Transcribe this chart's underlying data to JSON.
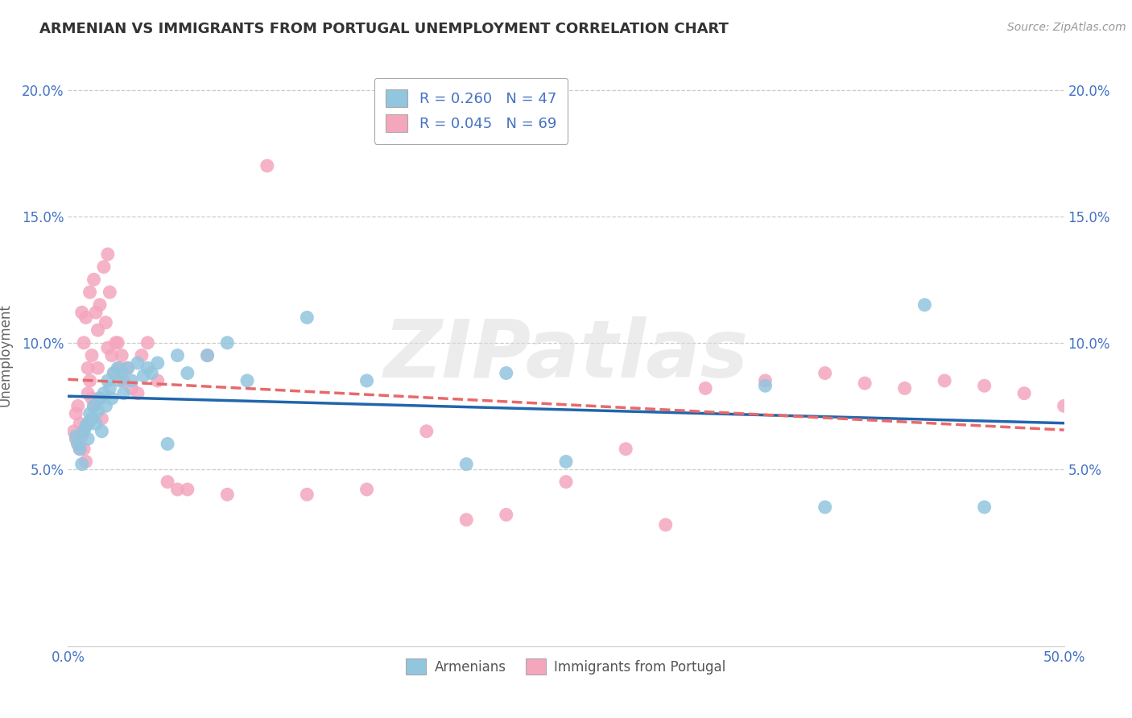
{
  "title": "ARMENIAN VS IMMIGRANTS FROM PORTUGAL UNEMPLOYMENT CORRELATION CHART",
  "source": "Source: ZipAtlas.com",
  "ylabel": "Unemployment",
  "xlim": [
    0.0,
    0.5
  ],
  "ylim": [
    -0.02,
    0.21
  ],
  "xticks": [
    0.0,
    0.1,
    0.2,
    0.3,
    0.4,
    0.5
  ],
  "xtick_labels_show": [
    "0.0%",
    "",
    "",
    "",
    "",
    "50.0%"
  ],
  "yticks": [
    0.05,
    0.1,
    0.15,
    0.2
  ],
  "ytick_labels": [
    "5.0%",
    "10.0%",
    "15.0%",
    "20.0%"
  ],
  "blue_color": "#92c5de",
  "pink_color": "#f4a6bd",
  "blue_line_color": "#2166ac",
  "pink_line_color": "#e8696b",
  "legend_line1": "R = 0.260   N = 47",
  "legend_line2": "R = 0.045   N = 69",
  "label1": "Armenians",
  "label2": "Immigrants from Portugal",
  "watermark": "ZIPatlas",
  "blue_scatter_x": [
    0.004,
    0.005,
    0.006,
    0.007,
    0.008,
    0.009,
    0.01,
    0.01,
    0.011,
    0.012,
    0.013,
    0.014,
    0.015,
    0.016,
    0.017,
    0.018,
    0.019,
    0.02,
    0.021,
    0.022,
    0.023,
    0.025,
    0.026,
    0.027,
    0.028,
    0.03,
    0.032,
    0.035,
    0.038,
    0.04,
    0.042,
    0.045,
    0.05,
    0.055,
    0.06,
    0.07,
    0.08,
    0.09,
    0.12,
    0.15,
    0.2,
    0.22,
    0.25,
    0.35,
    0.38,
    0.43,
    0.46
  ],
  "blue_scatter_y": [
    0.063,
    0.06,
    0.058,
    0.052,
    0.065,
    0.067,
    0.068,
    0.062,
    0.072,
    0.07,
    0.075,
    0.068,
    0.073,
    0.078,
    0.065,
    0.08,
    0.075,
    0.085,
    0.082,
    0.078,
    0.088,
    0.09,
    0.085,
    0.088,
    0.08,
    0.09,
    0.085,
    0.092,
    0.087,
    0.09,
    0.088,
    0.092,
    0.06,
    0.095,
    0.088,
    0.095,
    0.1,
    0.085,
    0.11,
    0.085,
    0.052,
    0.088,
    0.053,
    0.083,
    0.035,
    0.115,
    0.035
  ],
  "pink_scatter_x": [
    0.003,
    0.004,
    0.004,
    0.005,
    0.005,
    0.006,
    0.006,
    0.007,
    0.007,
    0.008,
    0.008,
    0.009,
    0.009,
    0.01,
    0.01,
    0.01,
    0.011,
    0.011,
    0.012,
    0.012,
    0.013,
    0.013,
    0.014,
    0.015,
    0.015,
    0.016,
    0.016,
    0.017,
    0.018,
    0.019,
    0.02,
    0.02,
    0.021,
    0.022,
    0.023,
    0.024,
    0.025,
    0.026,
    0.027,
    0.028,
    0.03,
    0.032,
    0.035,
    0.037,
    0.04,
    0.045,
    0.05,
    0.055,
    0.06,
    0.07,
    0.08,
    0.1,
    0.15,
    0.2,
    0.22,
    0.25,
    0.3,
    0.35,
    0.38,
    0.4,
    0.42,
    0.44,
    0.46,
    0.48,
    0.5,
    0.12,
    0.18,
    0.28,
    0.32
  ],
  "pink_scatter_y": [
    0.065,
    0.062,
    0.072,
    0.06,
    0.075,
    0.058,
    0.068,
    0.112,
    0.063,
    0.1,
    0.058,
    0.11,
    0.053,
    0.09,
    0.08,
    0.068,
    0.12,
    0.085,
    0.095,
    0.078,
    0.125,
    0.075,
    0.112,
    0.105,
    0.09,
    0.115,
    0.078,
    0.07,
    0.13,
    0.108,
    0.135,
    0.098,
    0.12,
    0.095,
    0.088,
    0.1,
    0.1,
    0.09,
    0.095,
    0.085,
    0.09,
    0.082,
    0.08,
    0.095,
    0.1,
    0.085,
    0.045,
    0.042,
    0.042,
    0.095,
    0.04,
    0.17,
    0.042,
    0.03,
    0.032,
    0.045,
    0.028,
    0.085,
    0.088,
    0.084,
    0.082,
    0.085,
    0.083,
    0.08,
    0.075,
    0.04,
    0.065,
    0.058,
    0.082
  ]
}
